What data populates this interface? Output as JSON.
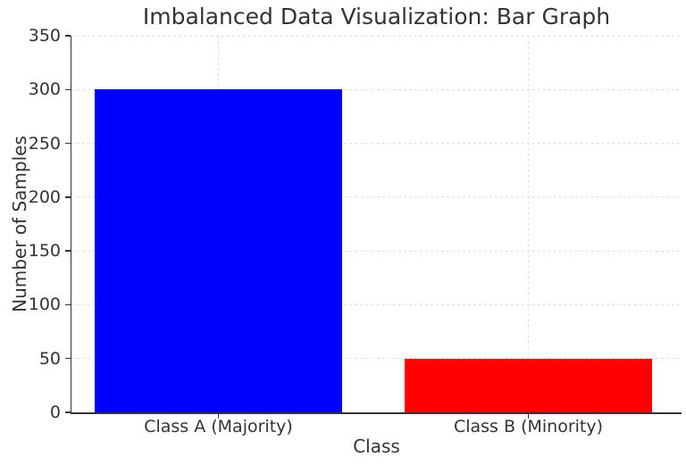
{
  "chart_data": {
    "type": "bar",
    "title": "Imbalanced Data Visualization: Bar Graph",
    "xlabel": "Class",
    "ylabel": "Number of Samples",
    "categories": [
      "Class A (Majority)",
      "Class B (Minority)"
    ],
    "values": [
      300,
      50
    ],
    "bar_colors": [
      "#0000ff",
      "#ff0000"
    ],
    "ylim": [
      0,
      350
    ],
    "yticks": [
      0,
      50,
      100,
      150,
      200,
      250,
      300,
      350
    ],
    "grid": {
      "visible": true,
      "style": "dashed",
      "color": "#d9d9d9"
    },
    "legend": "none",
    "axis_color": "#333333",
    "text_color": "#333333",
    "background_color": "#ffffff"
  }
}
